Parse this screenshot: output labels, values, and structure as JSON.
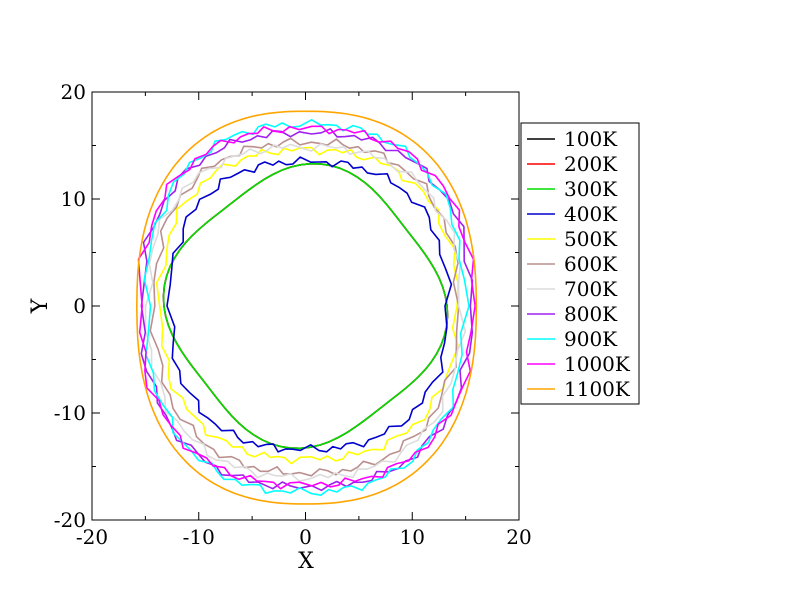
{
  "chart_data": {
    "type": "line",
    "xlabel": "X",
    "ylabel": "Y",
    "xlim": [
      -20,
      20
    ],
    "ylim": [
      -20,
      20
    ],
    "x_ticks": [
      -20,
      -10,
      0,
      10,
      20
    ],
    "y_ticks": [
      -20,
      -10,
      0,
      10,
      20
    ],
    "grid": false,
    "legend_position": "right",
    "series": [
      {
        "name": "100K",
        "color": "#000000",
        "shape": "dented",
        "radius": 12.6,
        "nx": 4,
        "ny": 4
      },
      {
        "name": "200K",
        "color": "#ff0000",
        "shape": "dented",
        "radius": 12.6,
        "nx": 4,
        "ny": 4
      },
      {
        "name": "300K",
        "color": "#00dd00",
        "shape": "dented",
        "radius": 12.6,
        "nx": 4,
        "ny": 4
      },
      {
        "name": "400K",
        "color": "#0000cc",
        "shape": "irregular",
        "nx": 12.7,
        "px": 13.3,
        "ny": 13.4,
        "py": 13.5
      },
      {
        "name": "500K",
        "color": "#ffff00",
        "shape": "irregular",
        "nx": 13.6,
        "px": 14.2,
        "ny": 14.3,
        "py": 14.6
      },
      {
        "name": "600K",
        "color": "#bc8f8f",
        "shape": "irregular",
        "nx": 14.2,
        "px": 14.3,
        "ny": 15.6,
        "py": 15.3
      },
      {
        "name": "700K",
        "color": "#dcdcdc",
        "shape": "irregular",
        "nx": 14.8,
        "px": 14.6,
        "ny": 16.0,
        "py": 14.9
      },
      {
        "name": "800K",
        "color": "#a020f0",
        "shape": "irregular",
        "nx": 15.3,
        "px": 15.5,
        "ny": 16.9,
        "py": 16.2
      },
      {
        "name": "900K",
        "color": "#00ffff",
        "shape": "irregular",
        "nx": 14.9,
        "px": 14.9,
        "ny": 17.4,
        "py": 17.0
      },
      {
        "name": "1000K",
        "color": "#ff00ff",
        "shape": "irregular",
        "nx": 15.5,
        "px": 15.7,
        "ny": 16.7,
        "py": 16.6
      },
      {
        "name": "1100K",
        "color": "#ffa500",
        "shape": "smooth",
        "nx": 15.8,
        "px": 16.0,
        "ny": 18.5,
        "py": 18.2
      }
    ]
  }
}
